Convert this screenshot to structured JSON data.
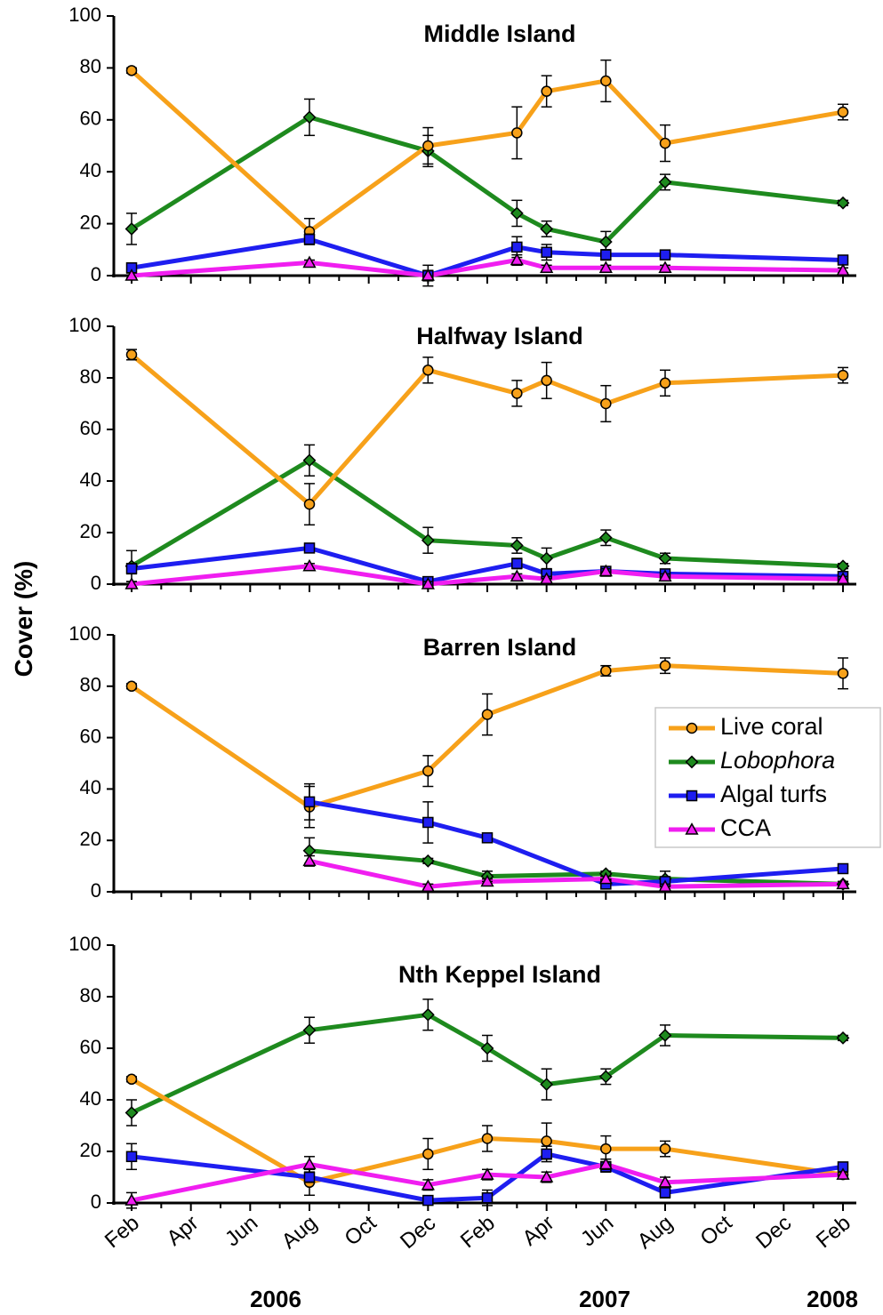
{
  "chart_data": {
    "type": "line",
    "ylabel": "Cover (%)",
    "ylim": [
      0,
      100
    ],
    "yticks": [
      0,
      20,
      40,
      60,
      80,
      100
    ],
    "month_labels": [
      "Feb",
      "Apr",
      "Jun",
      "Aug",
      "Oct",
      "Dec",
      "Feb",
      "Apr",
      "Jun",
      "Aug",
      "Oct",
      "Dec",
      "Feb"
    ],
    "year_labels": [
      "2006",
      "2007",
      "2008"
    ],
    "legend": {
      "placement": "right, in Barren Island panel"
    },
    "series_styles": [
      {
        "name": "Live coral",
        "color": "#F7A11A",
        "marker": "circle",
        "italic": false
      },
      {
        "name": "Lobophora",
        "color": "#1E8A1E",
        "marker": "diamond",
        "italic": true
      },
      {
        "name": "Algal turfs",
        "color": "#1E1EF0",
        "marker": "square",
        "italic": false
      },
      {
        "name": "CCA",
        "color": "#F01EF0",
        "marker": "triangle",
        "italic": false
      }
    ],
    "panels": [
      {
        "title": "Middle Island",
        "series": [
          {
            "name": "Live coral",
            "x": [
              "2006-02",
              "2006-08",
              "2006-12",
              "2007-03",
              "2007-04",
              "2007-06",
              "2007-08",
              "2008-02"
            ],
            "values": [
              79,
              17,
              50,
              55,
              71,
              75,
              51,
              63
            ],
            "errors": [
              1,
              5,
              7,
              10,
              6,
              8,
              7,
              3
            ]
          },
          {
            "name": "Lobophora",
            "x": [
              "2006-02",
              "2006-08",
              "2006-12",
              "2007-03",
              "2007-04",
              "2007-06",
              "2007-08",
              "2008-02"
            ],
            "values": [
              18,
              61,
              48,
              24,
              18,
              13,
              36,
              28
            ],
            "errors": [
              6,
              7,
              6,
              5,
              3,
              4,
              3,
              1
            ]
          },
          {
            "name": "Algal turfs",
            "x": [
              "2006-02",
              "2006-08",
              "2006-12",
              "2007-03",
              "2007-04",
              "2007-06",
              "2007-08",
              "2008-02"
            ],
            "values": [
              3,
              14,
              0,
              11,
              9,
              8,
              8,
              6
            ],
            "errors": [
              1,
              2,
              4,
              4,
              3,
              2,
              1,
              1
            ]
          },
          {
            "name": "CCA",
            "x": [
              "2006-02",
              "2006-08",
              "2006-12",
              "2007-03",
              "2007-04",
              "2007-06",
              "2007-08",
              "2008-02"
            ],
            "values": [
              0,
              5,
              0,
              6,
              3,
              3,
              3,
              2
            ],
            "errors": [
              1,
              1,
              2,
              2,
              1,
              1,
              1,
              1
            ]
          }
        ]
      },
      {
        "title": "Halfway Island",
        "series": [
          {
            "name": "Live coral",
            "x": [
              "2006-02",
              "2006-08",
              "2006-12",
              "2007-03",
              "2007-04",
              "2007-06",
              "2007-08",
              "2008-02"
            ],
            "values": [
              89,
              31,
              83,
              74,
              79,
              70,
              78,
              81
            ],
            "errors": [
              2,
              8,
              5,
              5,
              7,
              7,
              5,
              3
            ]
          },
          {
            "name": "Lobophora",
            "x": [
              "2006-02",
              "2006-08",
              "2006-12",
              "2007-03",
              "2007-04",
              "2007-06",
              "2007-08",
              "2008-02"
            ],
            "values": [
              7,
              48,
              17,
              15,
              10,
              18,
              10,
              7
            ],
            "errors": [
              6,
              6,
              5,
              3,
              4,
              3,
              2,
              1
            ]
          },
          {
            "name": "Algal turfs",
            "x": [
              "2006-02",
              "2006-08",
              "2006-12",
              "2007-03",
              "2007-04",
              "2007-06",
              "2007-08",
              "2008-02"
            ],
            "values": [
              6,
              14,
              1,
              8,
              4,
              5,
              4,
              3
            ],
            "errors": [
              2,
              1,
              1,
              2,
              1,
              1,
              1,
              1
            ]
          },
          {
            "name": "CCA",
            "x": [
              "2006-02",
              "2006-08",
              "2006-12",
              "2007-03",
              "2007-04",
              "2007-06",
              "2007-08",
              "2008-02"
            ],
            "values": [
              0,
              7,
              0,
              3,
              2,
              5,
              3,
              2
            ],
            "errors": [
              1,
              1,
              1,
              1,
              1,
              1,
              1,
              1
            ]
          }
        ]
      },
      {
        "title": "Barren Island",
        "series": [
          {
            "name": "Live coral",
            "x": [
              "2006-02",
              "2006-08",
              "2006-12",
              "2007-02",
              "2007-06",
              "2007-08",
              "2008-02"
            ],
            "values": [
              80,
              33,
              47,
              69,
              86,
              88,
              85
            ],
            "errors": [
              1,
              8,
              6,
              8,
              2,
              3,
              6
            ]
          },
          {
            "name": "Lobophora",
            "x": [
              "2006-08",
              "2006-12",
              "2007-02",
              "2007-06",
              "2007-08",
              "2008-02"
            ],
            "values": [
              16,
              12,
              6,
              7,
              5,
              3
            ],
            "errors": [
              5,
              1,
              2,
              1,
              3,
              1
            ]
          },
          {
            "name": "Algal turfs",
            "x": [
              "2006-08",
              "2006-12",
              "2007-02",
              "2007-06",
              "2007-08",
              "2008-02"
            ],
            "values": [
              35,
              27,
              21,
              3,
              4,
              9
            ],
            "errors": [
              7,
              8,
              1,
              1,
              1,
              1
            ]
          },
          {
            "name": "CCA",
            "x": [
              "2006-08",
              "2006-12",
              "2007-02",
              "2007-06",
              "2007-08",
              "2008-02"
            ],
            "values": [
              12,
              2,
              4,
              5,
              2,
              3
            ],
            "errors": [
              2,
              1,
              1,
              1,
              1,
              1
            ]
          }
        ]
      },
      {
        "title": "Nth Keppel Island",
        "series": [
          {
            "name": "Live coral",
            "x": [
              "2006-02",
              "2006-08",
              "2006-12",
              "2007-02",
              "2007-04",
              "2007-06",
              "2007-08",
              "2008-02"
            ],
            "values": [
              48,
              8,
              19,
              25,
              24,
              21,
              21,
              11
            ],
            "errors": [
              1,
              5,
              6,
              5,
              7,
              5,
              3,
              1
            ]
          },
          {
            "name": "Lobophora",
            "x": [
              "2006-02",
              "2006-08",
              "2006-12",
              "2007-02",
              "2007-04",
              "2007-06",
              "2007-08",
              "2008-02"
            ],
            "values": [
              35,
              67,
              73,
              60,
              46,
              49,
              65,
              64
            ],
            "errors": [
              5,
              5,
              6,
              5,
              6,
              3,
              4,
              1
            ]
          },
          {
            "name": "Algal turfs",
            "x": [
              "2006-02",
              "2006-08",
              "2006-12",
              "2007-02",
              "2007-04",
              "2007-06",
              "2007-08",
              "2008-02"
            ],
            "values": [
              18,
              10,
              1,
              2,
              19,
              14,
              4,
              14
            ],
            "errors": [
              5,
              2,
              1,
              3,
              3,
              2,
              2,
              1
            ]
          },
          {
            "name": "CCA",
            "x": [
              "2006-02",
              "2006-08",
              "2006-12",
              "2007-02",
              "2007-04",
              "2007-06",
              "2007-08",
              "2008-02"
            ],
            "values": [
              1,
              15,
              7,
              11,
              10,
              15,
              8,
              11
            ],
            "errors": [
              3,
              3,
              2,
              2,
              2,
              2,
              2,
              1
            ]
          }
        ]
      }
    ]
  }
}
